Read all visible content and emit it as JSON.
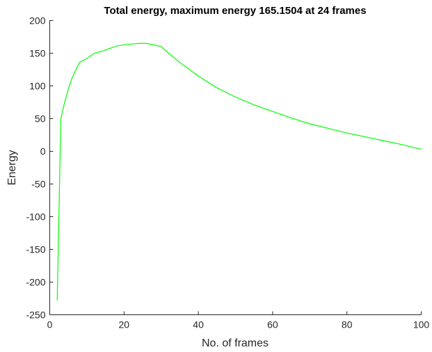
{
  "chart_data": {
    "type": "line",
    "title": "Total energy, maximum energy 165.1504 at 24 frames",
    "xlabel": "No. of frames",
    "ylabel": "Energy",
    "xlim": [
      0,
      100
    ],
    "ylim": [
      -250,
      200
    ],
    "xticks": [
      0,
      20,
      40,
      60,
      80,
      100
    ],
    "yticks": [
      -250,
      -200,
      -150,
      -100,
      -50,
      0,
      50,
      100,
      150,
      200
    ],
    "grid": false,
    "color": "#00ff00",
    "series": [
      {
        "x": [
          2,
          3,
          4,
          5,
          6,
          7,
          8,
          10,
          12,
          14,
          16,
          18,
          20,
          22,
          24,
          26,
          28,
          30,
          32,
          35,
          40,
          45,
          50,
          55,
          60,
          65,
          70,
          75,
          80,
          85,
          90,
          95,
          100
        ],
        "y": [
          -228,
          50,
          75,
          95,
          112,
          124,
          136,
          142,
          150,
          153,
          157,
          161,
          163,
          164,
          165.15,
          165,
          163,
          160,
          150,
          136,
          115,
          97,
          83,
          71,
          61,
          51,
          42,
          35,
          28,
          22,
          16,
          10,
          3
        ]
      }
    ]
  }
}
